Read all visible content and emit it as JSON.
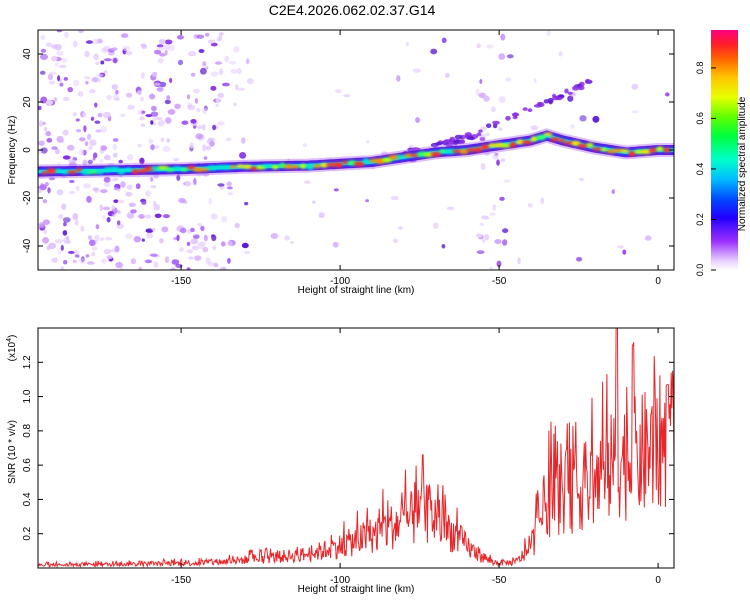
{
  "title": "C2E4.2026.062.02.37.G14",
  "chart_data": [
    {
      "type": "heatmap",
      "name": "spectrogram",
      "xlabel": "Height of straight line (km)",
      "ylabel": "Frequency (Hz)",
      "xlim": [
        -195,
        5
      ],
      "ylim": [
        -50,
        50
      ],
      "xticks": [
        -150,
        -100,
        -50,
        0
      ],
      "xtick_labels": [
        "-150",
        "-100",
        "-50",
        "0"
      ],
      "yticks": [
        -40,
        -20,
        0,
        20,
        40
      ],
      "ytick_labels": [
        "-40",
        "-20",
        "0",
        "20",
        "40"
      ],
      "ridge": {
        "description": "main frequency track (x km, frequency Hz)",
        "x": [
          -195,
          -150,
          -130,
          -110,
          -90,
          -80,
          -70,
          -60,
          -50,
          -40,
          -35,
          -30,
          -20,
          -10,
          0,
          5
        ],
        "y": [
          -9,
          -8,
          -7,
          -6.5,
          -5,
          -3,
          -1,
          0,
          2,
          4,
          6,
          4,
          1,
          -1,
          0,
          0
        ]
      },
      "upper_branch": {
        "description": "secondary rising track",
        "x": [
          -80,
          -60,
          -50,
          -40,
          -30,
          -20
        ],
        "y": [
          -1,
          5,
          11,
          17,
          23,
          29
        ]
      },
      "colorbar": {
        "label": "Normalized spectral amplitude",
        "range": [
          0,
          0.95
        ],
        "ticks": [
          0.0,
          0.2,
          0.4,
          0.6,
          0.8
        ],
        "tick_labels": [
          "0.0",
          "0.2",
          "0.4",
          "0.6",
          "0.8"
        ]
      }
    },
    {
      "type": "line",
      "name": "snr",
      "xlabel": "Height of straight line (km)",
      "ylabel": "SNR (10 * v/v)",
      "exponent_label": "(x10",
      "exponent_value": "4",
      "exponent_close": ")",
      "xlim": [
        -195,
        5
      ],
      "ylim": [
        0,
        1.4
      ],
      "xticks": [
        -150,
        -100,
        -50,
        0
      ],
      "xtick_labels": [
        "-150",
        "-100",
        "-50",
        "0"
      ],
      "yticks": [
        0.2,
        0.4,
        0.6,
        0.8,
        1.0,
        1.2
      ],
      "ytick_labels": [
        "0.2",
        "0.4",
        "0.6",
        "0.8",
        "1.0",
        "1.2"
      ],
      "series_color": "#e8262a",
      "envelope": {
        "description": "approximate SNR level (x10^4) vs height",
        "x": [
          -195,
          -160,
          -140,
          -130,
          -120,
          -110,
          -100,
          -90,
          -80,
          -75,
          -72,
          -65,
          -58,
          -52,
          -45,
          -40,
          -35,
          -30,
          -25,
          -20,
          -15,
          -12,
          -10,
          -5,
          0,
          5
        ],
        "y": [
          0.02,
          0.03,
          0.04,
          0.06,
          0.08,
          0.1,
          0.16,
          0.24,
          0.34,
          0.38,
          0.4,
          0.26,
          0.12,
          0.04,
          0.04,
          0.14,
          0.5,
          0.55,
          0.58,
          0.62,
          0.72,
          0.8,
          0.78,
          0.82,
          0.9,
          0.95
        ]
      },
      "peaks": {
        "description": "prominent spikes",
        "x": [
          -74,
          -13,
          -8,
          3
        ],
        "y": [
          0.66,
          1.4,
          1.3,
          1.07
        ]
      }
    }
  ]
}
